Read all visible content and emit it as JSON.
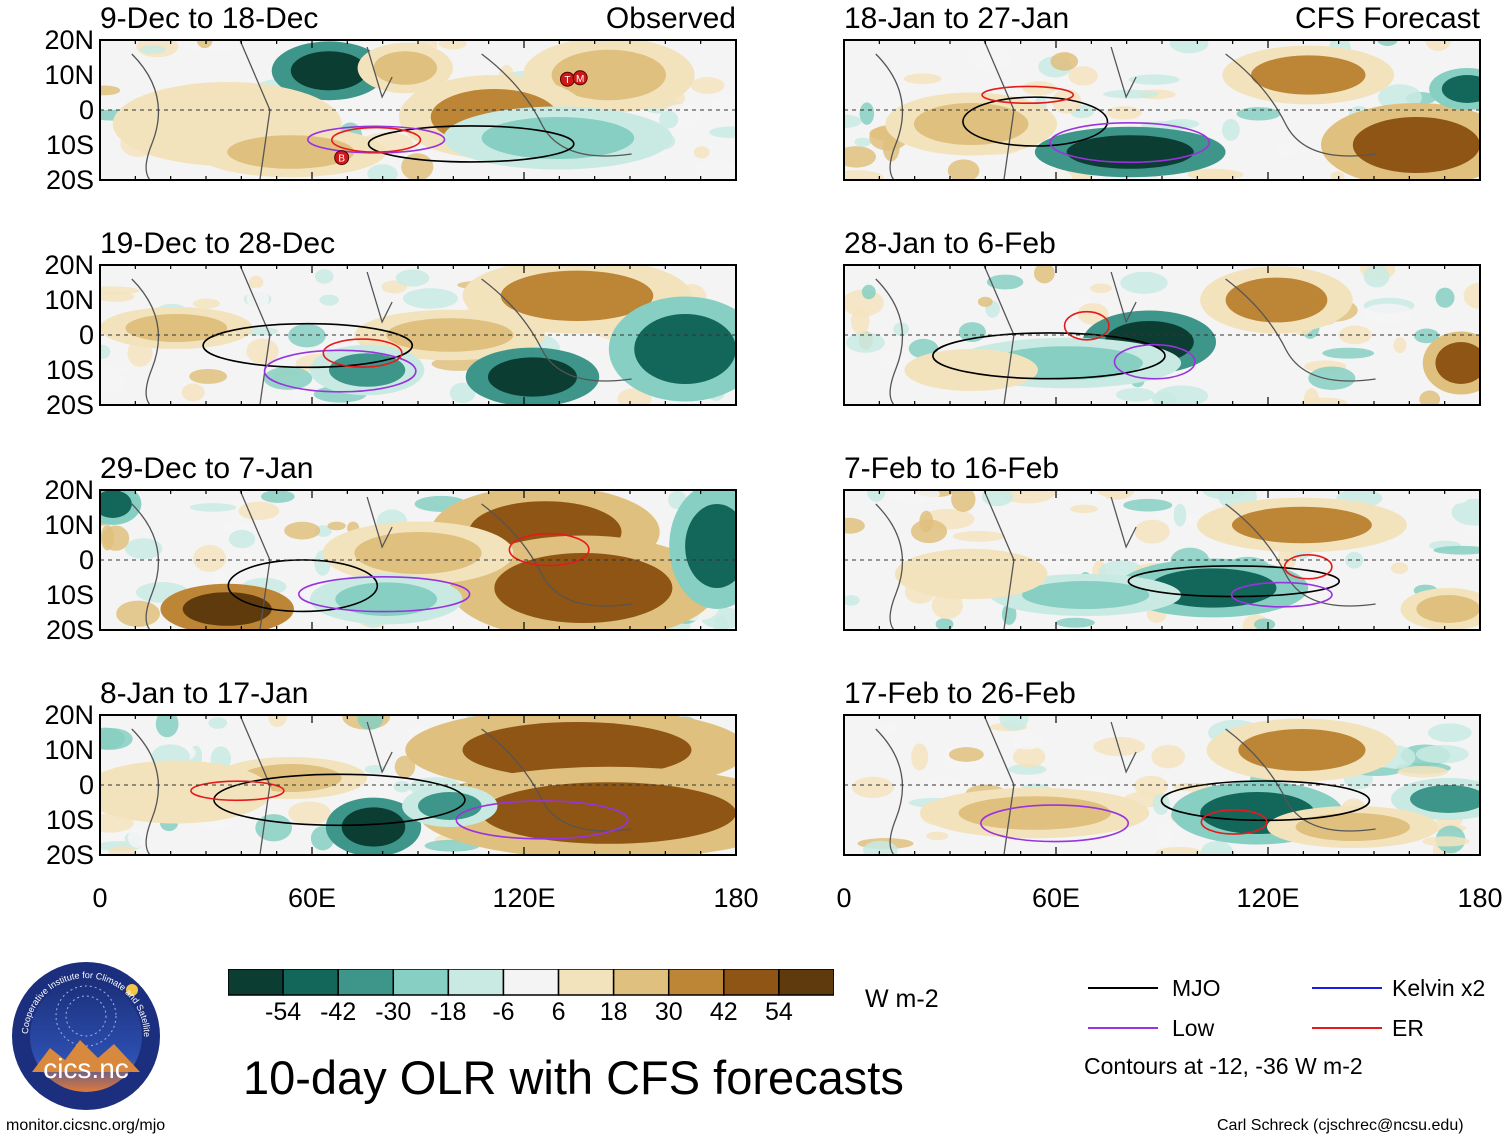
{
  "chart_data": {
    "type": "heatmap",
    "title": "10-day OLR with CFS forecasts",
    "variable": "OLR anomaly",
    "units": "W m-2",
    "xlim": [
      0,
      180
    ],
    "ylim": [
      -20,
      20
    ],
    "x_tick_labels": [
      "0",
      "60E",
      "120E",
      "180"
    ],
    "y_tick_labels": [
      "20N",
      "10N",
      "0",
      "10S",
      "20S"
    ],
    "left_column_label": "Observed",
    "right_column_label": "CFS Forecast",
    "panels": [
      {
        "period": "9-Dec to 18-Dec",
        "source": "Observed"
      },
      {
        "period": "19-Dec to 28-Dec",
        "source": "Observed"
      },
      {
        "period": "29-Dec to 7-Jan",
        "source": "Observed"
      },
      {
        "period": "8-Jan to 17-Jan",
        "source": "Observed"
      },
      {
        "period": "18-Jan to 27-Jan",
        "source": "CFS Forecast"
      },
      {
        "period": "28-Jan to 6-Feb",
        "source": "CFS Forecast"
      },
      {
        "period": "7-Feb to 16-Feb",
        "source": "CFS Forecast"
      },
      {
        "period": "17-Feb to 26-Feb",
        "source": "CFS Forecast"
      }
    ],
    "storm_markers": [
      "T",
      "M",
      "B"
    ],
    "colorbar": {
      "labels": [
        "-54",
        "-42",
        "-30",
        "-18",
        "-6",
        "6",
        "18",
        "30",
        "42",
        "54"
      ],
      "colors": [
        "#0b3d32",
        "#13665a",
        "#3e968a",
        "#86cfc2",
        "#c9eae3",
        "#f4f4f4",
        "#f3e3bd",
        "#dfc07e",
        "#bd8536",
        "#8e5514",
        "#5e3a0c"
      ],
      "units": "W m-2"
    },
    "legend": [
      {
        "label": "MJO",
        "color": "#000000"
      },
      {
        "label": "Kelvin x2",
        "color": "#1a1ae6"
      },
      {
        "label": "Low",
        "color": "#9933dd"
      },
      {
        "label": "ER",
        "color": "#e61a1a"
      }
    ],
    "contour_note": "Contours at -12, -36 W m-2"
  },
  "footer": {
    "source_url": "monitor.cicsnc.org/mjo",
    "author": "Carl Schreck (cjschrec@ncsu.edu)",
    "logo_text": "cics.nc",
    "logo_ring_text": "Cooperative Institute for Climate and Satellites"
  }
}
